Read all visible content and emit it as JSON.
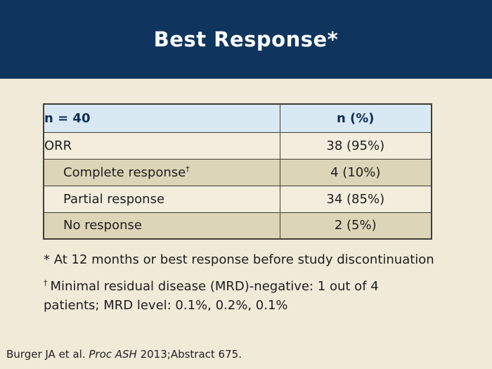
{
  "slide": {
    "title": "Best Response*",
    "colors": {
      "title_band_bg": "#0f355e",
      "title_text": "#ffffff",
      "slide_bg": "#f0ead8",
      "table_header_bg": "#d9e9f3",
      "table_header_text": "#0e2f55",
      "row_light_bg": "#f2eddc",
      "row_dark_bg": "#ddd5b7",
      "table_border": "#3e3e36",
      "body_text": "#1d1d1d"
    }
  },
  "table": {
    "header": {
      "col1": "n = 40",
      "col2": "n (%)"
    },
    "rows": [
      {
        "label": "ORR",
        "sup": "",
        "value": "38 (95%)"
      },
      {
        "label": "Complete response",
        "sup": "†",
        "value": "4 (10%)"
      },
      {
        "label": "Partial response",
        "sup": "",
        "value": "34 (85%)"
      },
      {
        "label": "No response",
        "sup": "",
        "value": "2 (5%)"
      }
    ]
  },
  "footnotes": {
    "asterisk": "* At 12 months or best response before study discontinuation",
    "dagger_symbol": "†",
    "dagger_text": "Minimal residual disease (MRD)-negative: 1 out of 4 patients; MRD level: 0.1%, 0.2%, 0.1%"
  },
  "citation": {
    "prefix": "Burger JA et al. ",
    "italic": "Proc ASH",
    "suffix": " 2013;Abstract 675."
  }
}
